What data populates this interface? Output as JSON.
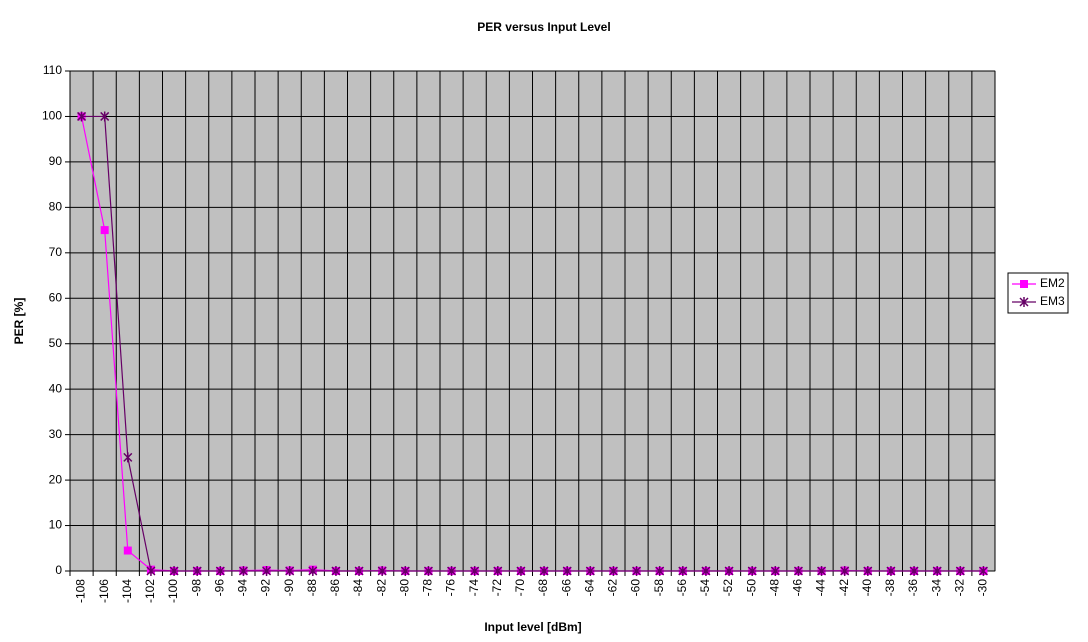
{
  "chart_data": {
    "type": "line",
    "title": "PER versus Input Level",
    "x_label": "Input level [dBm]",
    "y_label": "PER [%]",
    "categories": [
      -108,
      -106,
      -104,
      -102,
      -100,
      -98,
      -96,
      -94,
      -92,
      -90,
      -88,
      -86,
      -84,
      -82,
      -80,
      -78,
      -76,
      -74,
      -72,
      -70,
      -68,
      -66,
      -64,
      -62,
      -60,
      -58,
      -56,
      -54,
      -52,
      -50,
      -48,
      -46,
      -44,
      -42,
      -40,
      -38,
      -36,
      -34,
      -32,
      -30
    ],
    "series": [
      {
        "name": "EM2",
        "color": "#ff00ff",
        "marker": "square",
        "values": [
          100,
          75,
          4.5,
          0.3,
          0,
          0,
          0,
          0.1,
          0.2,
          0.1,
          0.3,
          0,
          0,
          0.1,
          0,
          0,
          0,
          0,
          0,
          0,
          0,
          0,
          0,
          0,
          0,
          0,
          0,
          0,
          0,
          0,
          0,
          0,
          0,
          0.1,
          0,
          0,
          0,
          0,
          0,
          0
        ]
      },
      {
        "name": "EM3",
        "color": "#660066",
        "marker": "star",
        "values": [
          100,
          100,
          25,
          0,
          0,
          0,
          0,
          0,
          0,
          0,
          0,
          0,
          0,
          0,
          0,
          0,
          0,
          0,
          0,
          0,
          0,
          0,
          0,
          0,
          0,
          0,
          0,
          0,
          0,
          0,
          0,
          0,
          0,
          0,
          0,
          0,
          0,
          0,
          0,
          0
        ]
      }
    ],
    "ylim": [
      0,
      110
    ],
    "yticks": [
      0,
      10,
      20,
      30,
      40,
      50,
      60,
      70,
      80,
      90,
      100,
      110
    ],
    "grid": true,
    "legend": "right",
    "plot_background": "#c0c0c0"
  }
}
